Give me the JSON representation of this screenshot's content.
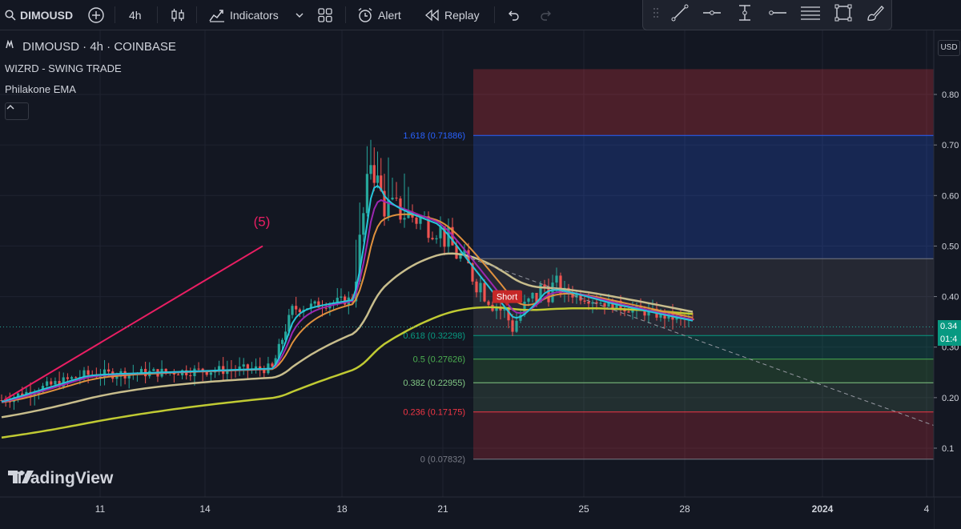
{
  "toolbar": {
    "symbol": "DIMOUSD",
    "interval": "4h",
    "indicators_label": "Indicators",
    "alert_label": "Alert",
    "replay_label": "Replay"
  },
  "legend": {
    "title": "DIMOUSD · 4h · COINBASE",
    "indicator1": "WIZRD - SWING TRADE",
    "indicator2": "Philakone EMA"
  },
  "fib_levels": [
    {
      "label": "1.618 (0.71886)",
      "value": 0.71886,
      "color": "#2962ff"
    },
    {
      "label": "0.618 (0.32298)",
      "value": 0.32298,
      "color": "#089981"
    },
    {
      "label": "0.5 (0.27626)",
      "value": 0.27626,
      "color": "#4caf50"
    },
    {
      "label": "0.382 (0.22955)",
      "value": 0.22955,
      "color": "#81c784"
    },
    {
      "label": "0.236 (0.17175)",
      "value": 0.17175,
      "color": "#f23645"
    },
    {
      "label": "0 (0.07832)",
      "value": 0.07832,
      "color": "#787b86"
    }
  ],
  "fib_top_value": 0.85,
  "wave_label": "(5)",
  "short_label": "Short",
  "price_axis": {
    "currency": "USD",
    "ticks": [
      "0.80",
      "0.70",
      "0.60",
      "0.50",
      "0.40",
      "0.30",
      "0.20",
      "0.1"
    ],
    "tick_values": [
      0.8,
      0.7,
      0.6,
      0.5,
      0.4,
      0.3,
      0.2,
      0.1
    ],
    "current_price": "0.34",
    "countdown": "01:4"
  },
  "time_axis": {
    "ticks": [
      "11",
      "14",
      "18",
      "21",
      "25",
      "28",
      "2024",
      "4"
    ]
  },
  "brand": "TradingView",
  "colors": {
    "bg": "#131722",
    "up": "#26a69a",
    "down": "#ef5350",
    "ema_fast": "#26c6da",
    "ema_mid": "#9c27b0",
    "ema_slow": "#e0913e",
    "ema_long": "#c8bd8c",
    "ema_longest": "#c0ca33",
    "trend": "#e91e63"
  }
}
